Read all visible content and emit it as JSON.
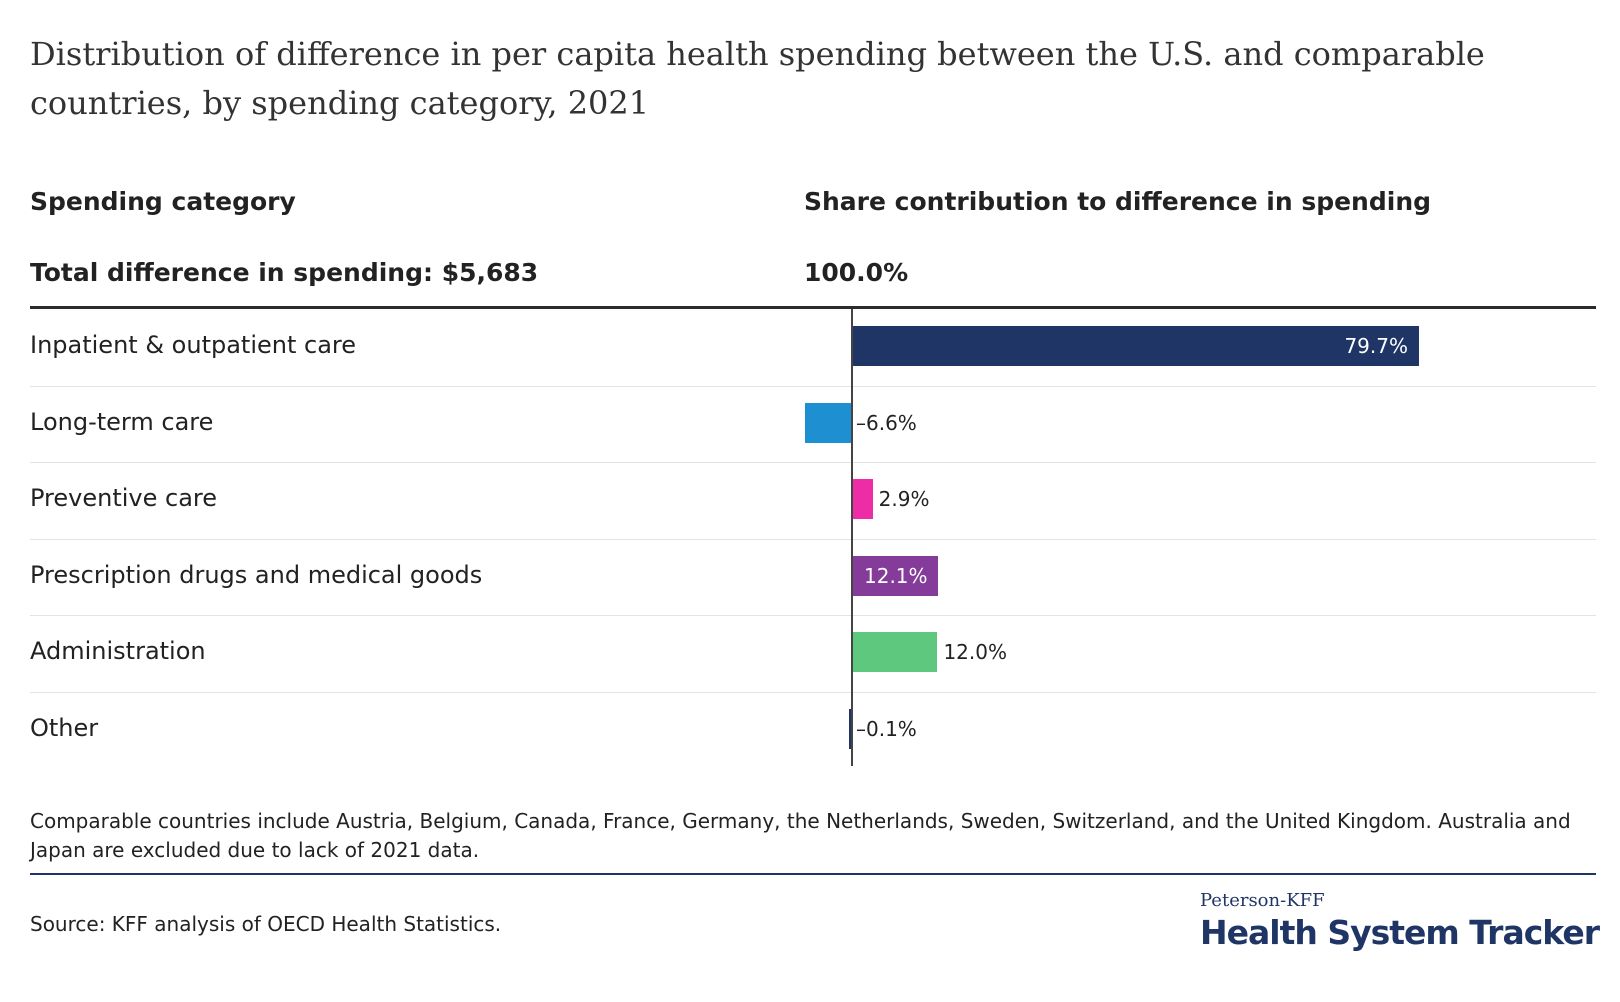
{
  "title": "Distribution of difference in per capita health spending between the U.S. and comparable countries, by spending category, 2021",
  "header": {
    "category_label": "Spending category",
    "share_label": "Share contribution to difference in spending",
    "total_label": "Total difference in spending: $5,683",
    "total_pct": "100.0%"
  },
  "chart_data": {
    "type": "bar",
    "orientation": "horizontal",
    "categories": [
      "Inpatient & outpatient care",
      "Long-term care",
      "Preventive care",
      "Prescription drugs and medical goods",
      "Administration",
      "Other"
    ],
    "values": [
      79.7,
      -6.6,
      2.9,
      12.1,
      12.0,
      -0.1
    ],
    "value_labels": [
      "79.7%",
      "–6.6%",
      "2.9%",
      "12.1%",
      "12.0%",
      "–0.1%"
    ],
    "colors": [
      "#1f3566",
      "#1e8fd1",
      "#ee2ca5",
      "#843b99",
      "#5ec97e",
      "#1f3566"
    ],
    "label_inside": [
      true,
      false,
      false,
      true,
      false,
      false
    ]
  },
  "footnote": "Comparable countries include Austria, Belgium, Canada, France, Germany, the Netherlands, Sweden, Switzerland, and the United Kingdom. Australia and Japan are excluded due to lack of 2021 data.",
  "source": "Source: KFF analysis of OECD Health Statistics.",
  "logo": {
    "top": "Peterson-KFF",
    "main": "Health System Tracker"
  }
}
